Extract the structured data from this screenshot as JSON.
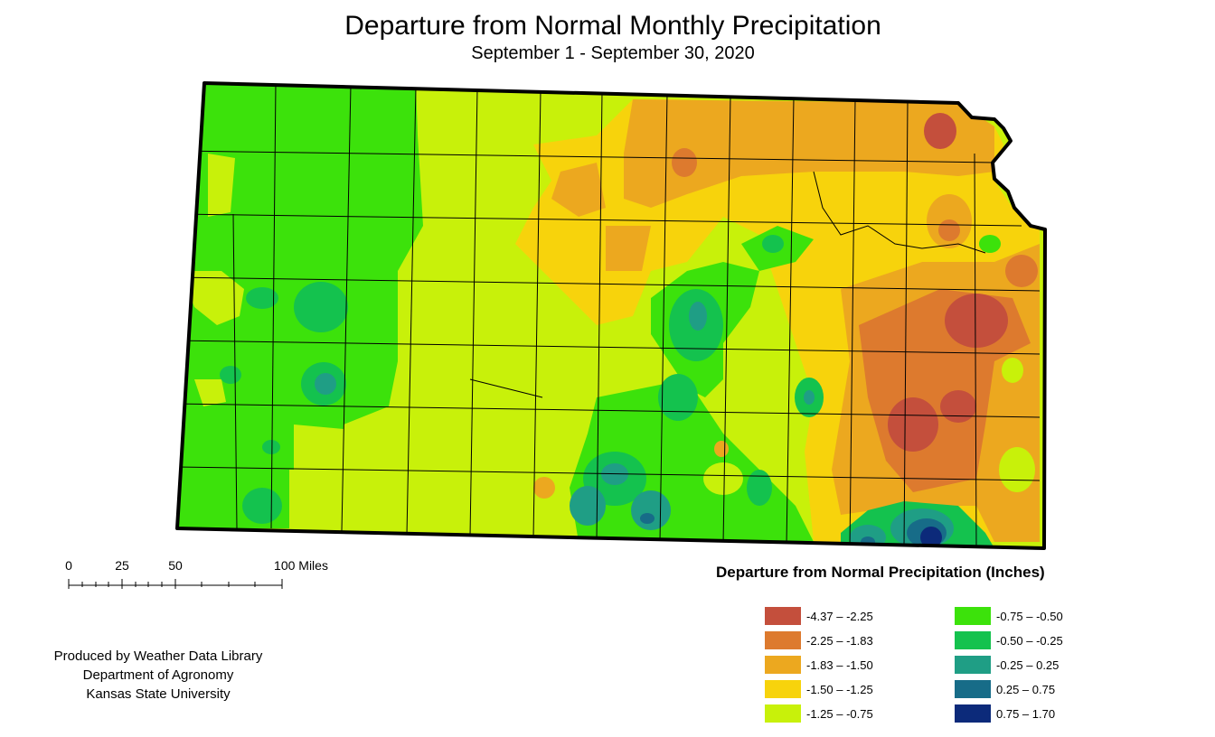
{
  "header": {
    "title": "Departure from Normal Monthly Precipitation",
    "subtitle": "September 1 - September 30, 2020"
  },
  "scale_bar": {
    "labels": [
      "0",
      "25",
      "50",
      "100 Miles"
    ]
  },
  "credit": {
    "line1": "Produced by Weather Data Library",
    "line2": "Department of Agronomy",
    "line3": "Kansas State University"
  },
  "legend": {
    "title": "Departure from Normal Precipitation (Inches)",
    "classes": [
      {
        "label": "-4.37 – -2.25",
        "color": "#c44f3c"
      },
      {
        "label": "-2.25 – -1.83",
        "color": "#dd7a2e"
      },
      {
        "label": "-1.83 – -1.50",
        "color": "#eca81f"
      },
      {
        "label": "-1.50 – -1.25",
        "color": "#f7d30c"
      },
      {
        "label": "-1.25 – -0.75",
        "color": "#c8f10a"
      },
      {
        "label": "-0.75 – -0.50",
        "color": "#3ce20b"
      },
      {
        "label": "-0.50 – -0.25",
        "color": "#14c24e"
      },
      {
        "label": "-0.25 – 0.25",
        "color": "#1f9e85"
      },
      {
        "label": "0.25 – 0.75",
        "color": "#176c88"
      },
      {
        "label": "0.75 – 1.70",
        "color": "#0c2a7a"
      }
    ]
  }
}
